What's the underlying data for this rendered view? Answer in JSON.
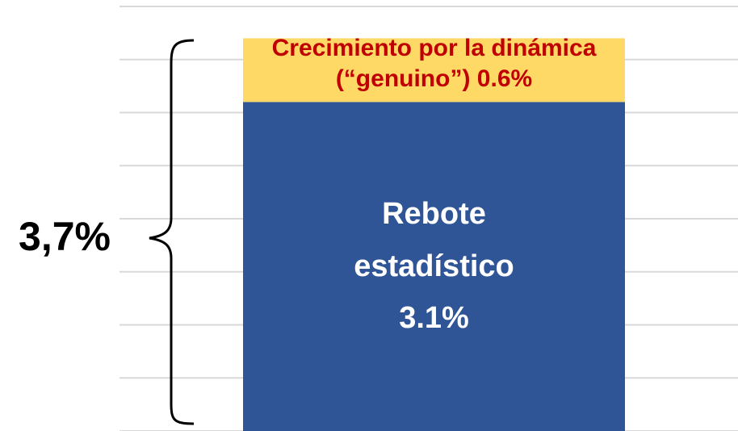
{
  "chart_data": {
    "type": "stacked_bar",
    "categories": [
      null
    ],
    "series": [
      {
        "name": "Rebote estadístico",
        "color": "#2f5597",
        "label_color": "#ffffff",
        "values": [
          3.1
        ],
        "value_labels": [
          "3.1%"
        ]
      },
      {
        "name": "Crecimiento por la dinámica (“genuino”)",
        "color": "#ffd966",
        "label_color": "#c00000",
        "values": [
          0.6
        ],
        "value_labels": [
          "0.6%"
        ]
      }
    ],
    "total_label": "3,7%",
    "ylim": [
      0,
      4
    ],
    "yticks": [
      0,
      0.5,
      1,
      1.5,
      2,
      2.5,
      3,
      3.5,
      4
    ],
    "grid": true
  }
}
